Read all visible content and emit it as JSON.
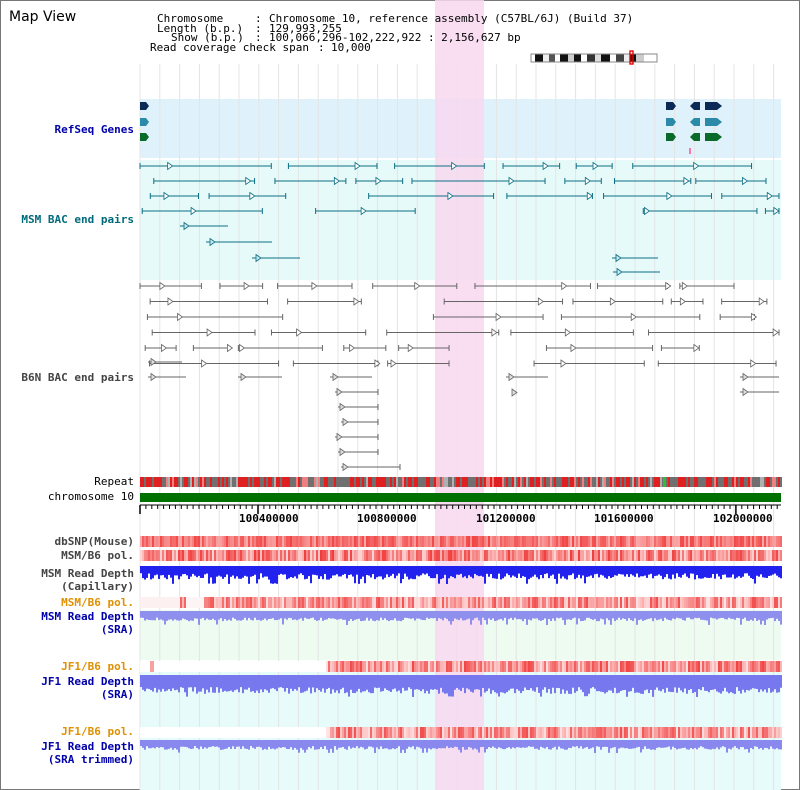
{
  "view_title": "Map View",
  "header": {
    "chromosome_key": "Chromosome",
    "chromosome_val": "Chromosome 10, reference assembly (C57BL/6J) (Build 37)",
    "length_key": "Length (b.p.)",
    "length_val": "129,993,255",
    "show_key": "Show (b.p.)",
    "show_val": "100,066,296-102,222,922 : 2,156,627 bp",
    "coverage_key": "Read coverage check span",
    "coverage_val": "10,000",
    "sep": ":"
  },
  "tracks": {
    "refseq": "RefSeq Genes",
    "msm_bac": "MSM BAC end pairs",
    "b6n_bac": "B6N BAC end pairs",
    "repeat": "Repeat",
    "chromosome": "chromosome 10",
    "dbsnp": "dbSNP(Mouse)",
    "msm_b6_pol_1": "MSM/B6 pol.",
    "msm_read_depth_cap_1": "MSM Read Depth",
    "msm_read_depth_cap_2": "(Capillary)",
    "msm_b6_pol_2": "MSM/B6 pol.",
    "msm_read_depth_sra_1": "MSM Read Depth",
    "msm_read_depth_sra_2": "(SRA)",
    "jf1_b6_pol_1": "JF1/B6 pol.",
    "jf1_read_depth_sra_1": "JF1 Read Depth",
    "jf1_read_depth_sra_2": "(SRA)",
    "jf1_b6_pol_2": "JF1/B6 pol.",
    "jf1_read_depth_trim_1": "JF1 Read Depth",
    "jf1_read_depth_trim_2": "(SRA trimmed)"
  },
  "ruler": {
    "ticks": [
      "100400000",
      "100800000",
      "101200000",
      "101600000",
      "102000000"
    ]
  },
  "colors": {
    "refseq_bg": "#dff2fb",
    "msm_bg": "#e6fbf9",
    "highlight": "#f8d8f0",
    "label_blue": "#0000aa",
    "label_teal": "#006a7a",
    "label_gray": "#444444",
    "label_orange": "#e09000",
    "chromosome_green": "#007000"
  }
}
